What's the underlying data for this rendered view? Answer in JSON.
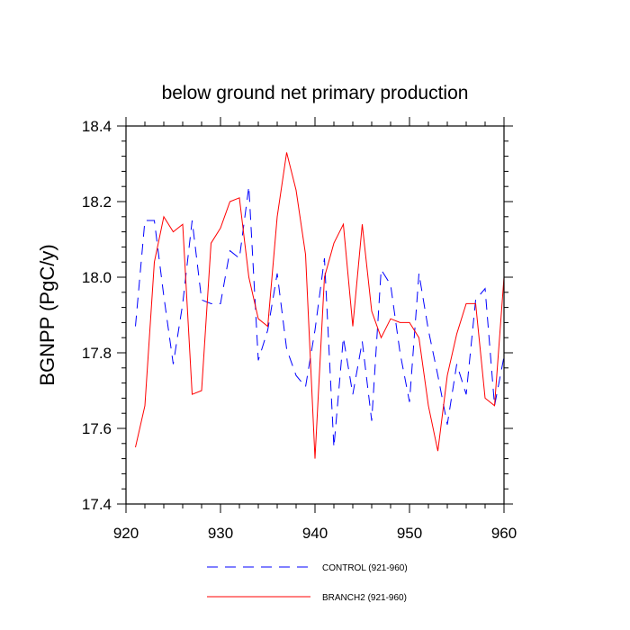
{
  "chart_data": {
    "type": "line",
    "title": "below ground net primary production",
    "xlabel": "",
    "ylabel": "BGNPP  (PgC/y)",
    "xlim": [
      920,
      960
    ],
    "ylim": [
      17.4,
      18.4
    ],
    "xticks": [
      920,
      930,
      940,
      950,
      960
    ],
    "yticks": [
      17.4,
      17.6,
      17.8,
      18.0,
      18.2,
      18.4
    ],
    "ytick_labels": [
      "17.4",
      "17.6",
      "17.8",
      "18.0",
      "18.2",
      "18.4"
    ],
    "x": [
      921,
      922,
      923,
      924,
      925,
      926,
      927,
      928,
      929,
      930,
      931,
      932,
      933,
      934,
      935,
      936,
      937,
      938,
      939,
      940,
      941,
      942,
      943,
      944,
      945,
      946,
      947,
      948,
      949,
      950,
      951,
      952,
      953,
      954,
      955,
      956,
      957,
      958,
      959,
      960
    ],
    "series": [
      {
        "name": "CONTROL (921-960)",
        "color": "#0000ff",
        "dash": "dashed",
        "values": [
          17.87,
          18.15,
          18.15,
          17.95,
          17.77,
          17.93,
          18.15,
          17.94,
          17.93,
          17.93,
          18.07,
          18.05,
          18.24,
          17.78,
          17.86,
          18.01,
          17.81,
          17.74,
          17.71,
          17.86,
          18.05,
          17.55,
          17.84,
          17.69,
          17.83,
          17.62,
          18.02,
          17.98,
          17.8,
          17.67,
          18.01,
          17.86,
          17.74,
          17.61,
          17.77,
          17.69,
          17.94,
          17.97,
          17.66,
          17.79
        ]
      },
      {
        "name": "BRANCH2 (921-960)",
        "color": "#ff0000",
        "dash": "solid",
        "values": [
          17.55,
          17.66,
          18.04,
          18.16,
          18.12,
          18.14,
          17.69,
          17.7,
          18.09,
          18.13,
          18.2,
          18.21,
          18.0,
          17.89,
          17.87,
          18.16,
          18.33,
          18.23,
          18.06,
          17.52,
          18.0,
          18.09,
          18.14,
          17.87,
          18.14,
          17.91,
          17.84,
          17.89,
          17.88,
          17.88,
          17.84,
          17.66,
          17.54,
          17.74,
          17.85,
          17.93,
          17.93,
          17.68,
          17.66,
          18.0
        ]
      }
    ]
  }
}
